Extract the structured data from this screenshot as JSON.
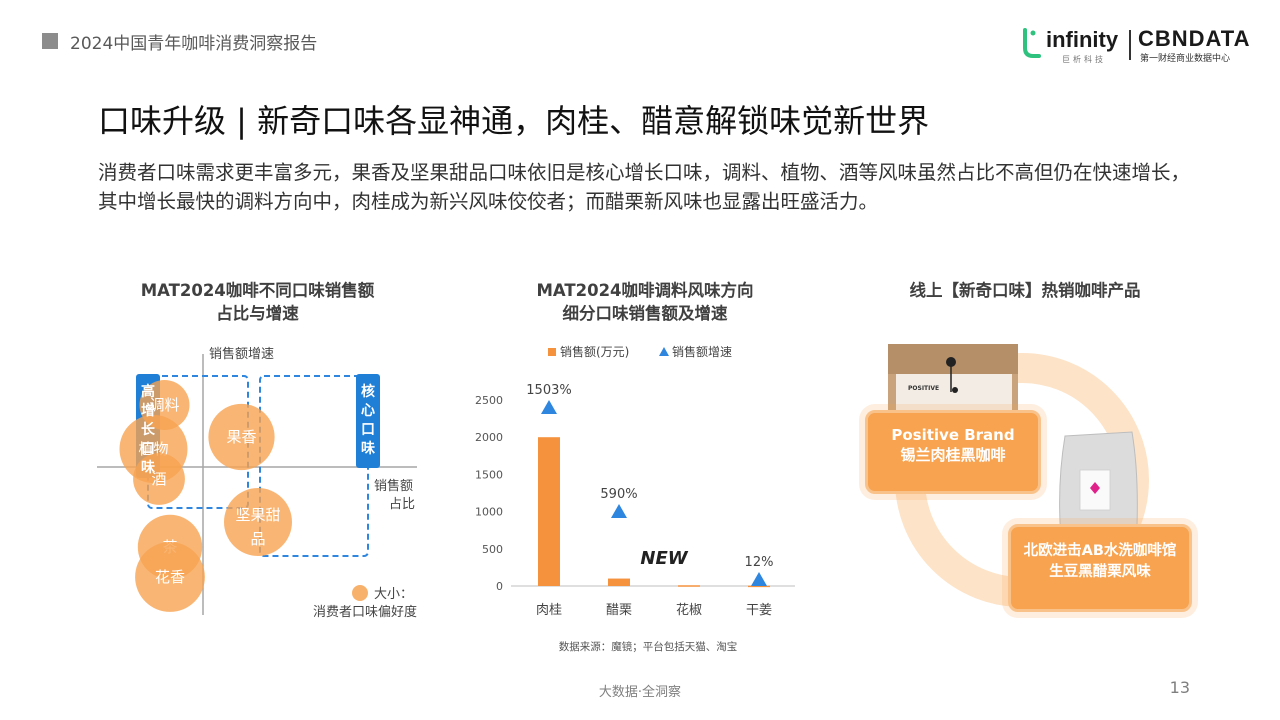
{
  "header": {
    "report_title": "2024中国青年咖啡消费洞察报告",
    "logo_infinity": "infinity",
    "logo_infinity_sub": "巨析科技",
    "logo_cbndata": "CBNDATA",
    "logo_cbndata_sub": "第一财经商业数据中心"
  },
  "main": {
    "title": "口味升级 | 新奇口味各显神通，肉桂、醋意解锁味觉新世界",
    "lead": "消费者口味需求更丰富多元，果香及坚果甜品口味依旧是核心增长口味，调料、植物、酒等风味虽然占比不高但仍在快速增长，其中增长最快的调料方向中，肉桂成为新兴风味佼佼者；而醋栗新风味也显露出旺盛活力。"
  },
  "chart_data": [
    {
      "type": "scatter",
      "title_line1": "MAT2024咖啡不同口味销售额",
      "title_line2": "占比与增速",
      "xlabel_line1": "销售额",
      "xlabel_line2": "占比",
      "ylabel": "销售额增速",
      "points": [
        {
          "name": "调料",
          "x": -0.35,
          "y": 0.62,
          "size": 0.5
        },
        {
          "name": "植物",
          "x": -0.45,
          "y": 0.18,
          "size": 1.0
        },
        {
          "name": "酒",
          "x": -0.4,
          "y": -0.12,
          "size": 0.55
        },
        {
          "name": "果香",
          "x": 0.35,
          "y": 0.3,
          "size": 0.95
        },
        {
          "name": "坚果甜品",
          "x": 0.5,
          "y": -0.55,
          "size": 1.0
        },
        {
          "name": "茶",
          "x": -0.3,
          "y": -0.8,
          "size": 0.9
        },
        {
          "name": "花香",
          "x": -0.3,
          "y": -1.1,
          "size": 1.05
        }
      ],
      "groups": [
        {
          "label": "高增长口味"
        },
        {
          "label": "核心口味"
        }
      ],
      "legend": {
        "line1": "大小：",
        "line2": "消费者口味偏好度"
      },
      "color": "#f7a350"
    },
    {
      "type": "bar",
      "title_line1": "MAT2024咖啡调料风味方向",
      "title_line2": "细分口味销售额及增速",
      "categories": [
        "肉桂",
        "醋栗",
        "花椒",
        "干姜"
      ],
      "series": [
        {
          "name": "销售额(万元)",
          "values": [
            2000,
            100,
            10,
            5
          ],
          "color": "#f4923e"
        },
        {
          "name": "销售额增速",
          "values": [
            1503,
            590,
            null,
            12
          ],
          "labels": [
            "1503%",
            "590%",
            "",
            "12%"
          ],
          "color": "#2e86de"
        }
      ],
      "new_badge": {
        "label": "NEW",
        "category": "花椒"
      },
      "yticks": [
        0,
        500,
        1000,
        1500,
        2000,
        2500
      ],
      "ylim": [
        0,
        2500
      ],
      "source": "数据来源：魔镜；平台包括天猫、淘宝"
    }
  ],
  "products": {
    "title": "线上【新奇口味】热销咖啡产品",
    "item1_line1": "Positive Brand",
    "item1_line2": "锡兰肉桂黑咖啡",
    "item1_box_text": "POSITIVE",
    "item2_line1": "北欧进击AB水洗咖啡馆",
    "item2_line2": "生豆黑醋栗风味"
  },
  "footer": {
    "center": "大数据·全洞察",
    "page_number": "13"
  }
}
